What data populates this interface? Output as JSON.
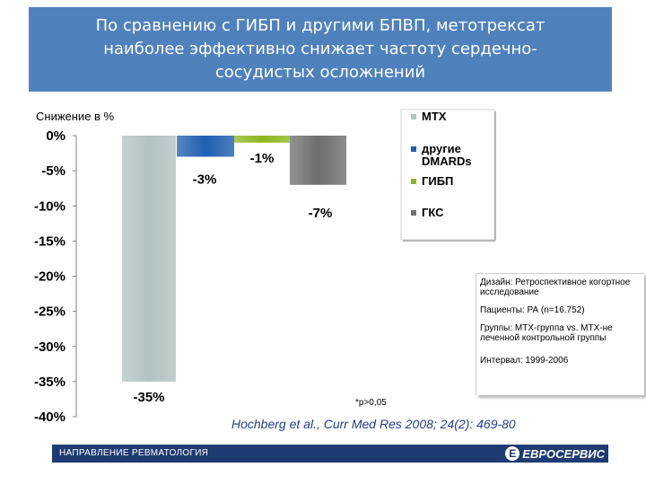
{
  "title": {
    "lines": [
      "По сравнению с ГИБП и другими БПВП, метотрексат",
      "наиболее эффективно снижает частоту сердечно-",
      "сосудистых осложнений"
    ]
  },
  "colors": {
    "title_bg": "#4f81bd",
    "footer_bg": "#1f3b73",
    "ref_text": "#1f3d8a"
  },
  "chart_data": {
    "type": "bar",
    "ylabel": "Снижение в %",
    "categories": [
      "МТХ",
      "другие DMARDs",
      "ГИБП",
      "ГКС"
    ],
    "values": [
      -35,
      -3,
      -1,
      -7
    ],
    "data_labels": [
      "-35%",
      "-3%",
      "-1%",
      "-7%"
    ],
    "colors": [
      "#b3c2c2",
      "#1f5fb0",
      "#8db51e",
      "#6e6e6e"
    ],
    "yticks": [
      "0%",
      "-5%",
      "-10%",
      "-15%",
      "-20%",
      "-25%",
      "-30%",
      "-35%",
      "-40%"
    ],
    "ylim": [
      -40,
      0
    ],
    "grid": false,
    "legend_position": "top-right",
    "legend": [
      "МТХ",
      "другие DMARDs",
      "ГИБП",
      "ГКС"
    ]
  },
  "info": {
    "design": "Дизайн: Ретроспективное когортное исследование",
    "patients": "Пациенты: РА (n=16.752)",
    "groups": "Группы: МТХ-группа vs. МТХ-не леченной контрольной группы",
    "interval": "Интервал: 1999-2006"
  },
  "pnote": "*p>0,05",
  "reference": "Hochberg et al., Curr Med Res 2008; 24(2): 469-80",
  "footer": {
    "left": "НАПРАВЛЕНИЕ РЕВМАТОЛОГИЯ",
    "logo_mark": "Е",
    "logo_text": "ЕВРОСЕРВИС"
  }
}
